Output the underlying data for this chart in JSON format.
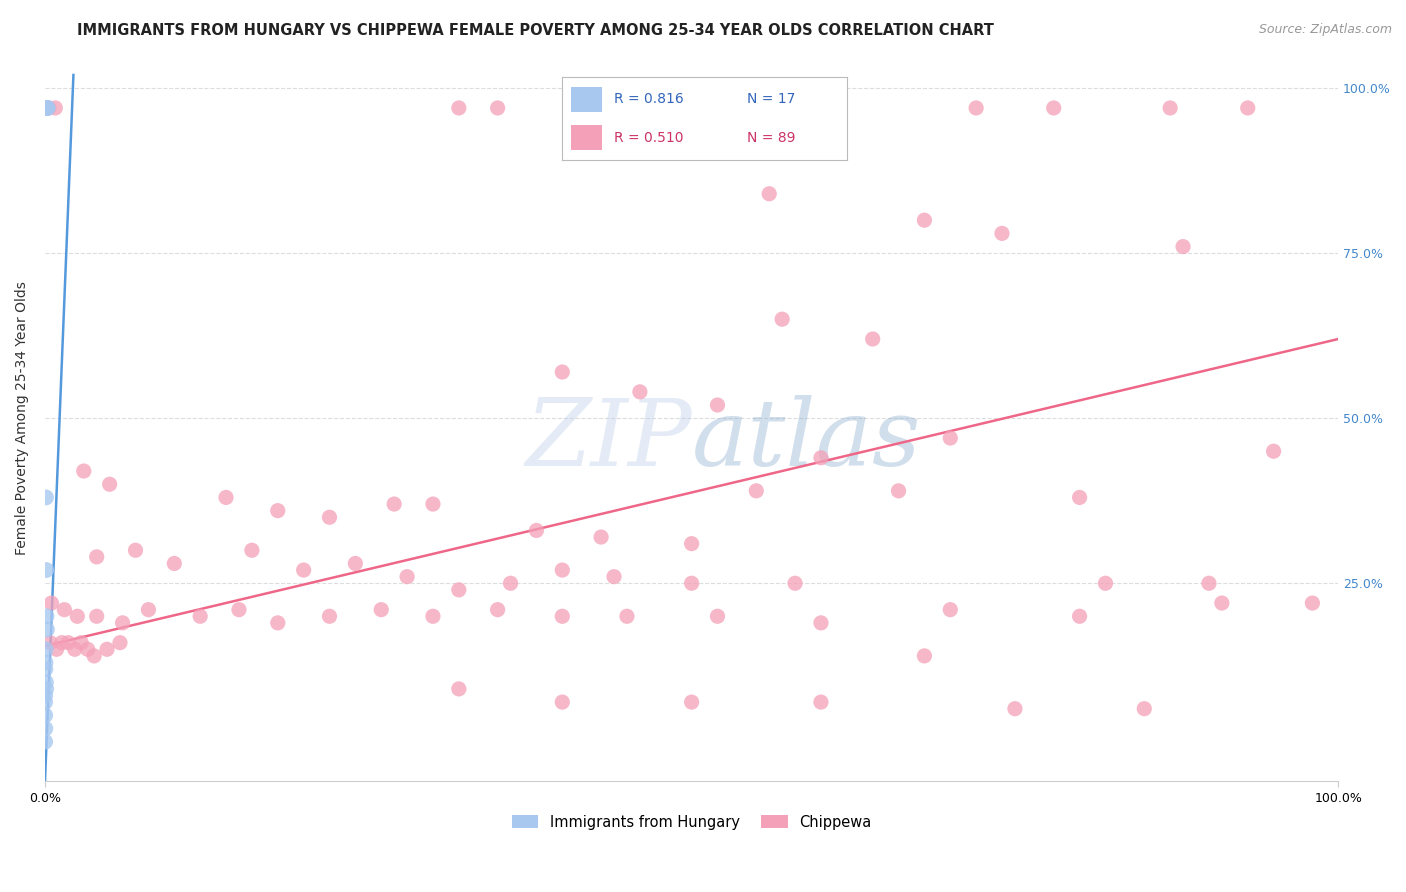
{
  "title": "IMMIGRANTS FROM HUNGARY VS CHIPPEWA FEMALE POVERTY AMONG 25-34 YEAR OLDS CORRELATION CHART",
  "source": "Source: ZipAtlas.com",
  "ylabel": "Female Poverty Among 25-34 Year Olds",
  "xlim": [
    0,
    1.0
  ],
  "ylim": [
    -0.05,
    1.05
  ],
  "grid_color": "#dddddd",
  "background_color": "#ffffff",
  "blue_color": "#a8c8f0",
  "pink_color": "#f4a0b8",
  "blue_line_color": "#5599dd",
  "pink_line_color": "#ee6688",
  "blue_scatter": [
    [
      0.0005,
      0.97
    ],
    [
      0.0018,
      0.97
    ],
    [
      0.0022,
      0.97
    ],
    [
      0.0008,
      0.38
    ],
    [
      0.001,
      0.27
    ],
    [
      0.0012,
      0.2
    ],
    [
      0.0015,
      0.18
    ],
    [
      0.0006,
      0.15
    ],
    [
      0.0004,
      0.13
    ],
    [
      0.0003,
      0.12
    ],
    [
      0.0007,
      0.1
    ],
    [
      0.0009,
      0.09
    ],
    [
      0.0002,
      0.08
    ],
    [
      0.0001,
      0.07
    ],
    [
      0.00015,
      0.05
    ],
    [
      0.00025,
      0.03
    ],
    [
      0.0001,
      0.01
    ]
  ],
  "pink_scatter": [
    [
      0.003,
      0.97
    ],
    [
      0.008,
      0.97
    ],
    [
      0.32,
      0.97
    ],
    [
      0.35,
      0.97
    ],
    [
      0.72,
      0.97
    ],
    [
      0.78,
      0.97
    ],
    [
      0.87,
      0.97
    ],
    [
      0.93,
      0.97
    ],
    [
      0.56,
      0.84
    ],
    [
      0.68,
      0.8
    ],
    [
      0.74,
      0.78
    ],
    [
      0.88,
      0.76
    ],
    [
      0.57,
      0.65
    ],
    [
      0.64,
      0.62
    ],
    [
      0.4,
      0.57
    ],
    [
      0.46,
      0.54
    ],
    [
      0.52,
      0.52
    ],
    [
      0.6,
      0.44
    ],
    [
      0.7,
      0.47
    ],
    [
      0.95,
      0.45
    ],
    [
      0.03,
      0.42
    ],
    [
      0.05,
      0.4
    ],
    [
      0.14,
      0.38
    ],
    [
      0.18,
      0.36
    ],
    [
      0.22,
      0.35
    ],
    [
      0.27,
      0.37
    ],
    [
      0.3,
      0.37
    ],
    [
      0.38,
      0.33
    ],
    [
      0.43,
      0.32
    ],
    [
      0.5,
      0.31
    ],
    [
      0.55,
      0.39
    ],
    [
      0.66,
      0.39
    ],
    [
      0.8,
      0.38
    ],
    [
      0.04,
      0.29
    ],
    [
      0.07,
      0.3
    ],
    [
      0.1,
      0.28
    ],
    [
      0.16,
      0.3
    ],
    [
      0.2,
      0.27
    ],
    [
      0.24,
      0.28
    ],
    [
      0.28,
      0.26
    ],
    [
      0.32,
      0.24
    ],
    [
      0.36,
      0.25
    ],
    [
      0.4,
      0.27
    ],
    [
      0.44,
      0.26
    ],
    [
      0.5,
      0.25
    ],
    [
      0.58,
      0.25
    ],
    [
      0.82,
      0.25
    ],
    [
      0.9,
      0.25
    ],
    [
      0.005,
      0.22
    ],
    [
      0.015,
      0.21
    ],
    [
      0.025,
      0.2
    ],
    [
      0.04,
      0.2
    ],
    [
      0.06,
      0.19
    ],
    [
      0.08,
      0.21
    ],
    [
      0.12,
      0.2
    ],
    [
      0.15,
      0.21
    ],
    [
      0.18,
      0.19
    ],
    [
      0.22,
      0.2
    ],
    [
      0.26,
      0.21
    ],
    [
      0.3,
      0.2
    ],
    [
      0.35,
      0.21
    ],
    [
      0.4,
      0.2
    ],
    [
      0.45,
      0.2
    ],
    [
      0.52,
      0.2
    ],
    [
      0.6,
      0.19
    ],
    [
      0.7,
      0.21
    ],
    [
      0.8,
      0.2
    ],
    [
      0.004,
      0.16
    ],
    [
      0.009,
      0.15
    ],
    [
      0.013,
      0.16
    ],
    [
      0.018,
      0.16
    ],
    [
      0.023,
      0.15
    ],
    [
      0.028,
      0.16
    ],
    [
      0.033,
      0.15
    ],
    [
      0.038,
      0.14
    ],
    [
      0.048,
      0.15
    ],
    [
      0.058,
      0.16
    ],
    [
      0.32,
      0.09
    ],
    [
      0.4,
      0.07
    ],
    [
      0.5,
      0.07
    ],
    [
      0.6,
      0.07
    ],
    [
      0.68,
      0.14
    ],
    [
      0.75,
      0.06
    ],
    [
      0.85,
      0.06
    ],
    [
      0.91,
      0.22
    ],
    [
      0.98,
      0.22
    ]
  ],
  "blue_line_x0": 0.0,
  "blue_line_x1": 0.022,
  "blue_line_y0": -0.05,
  "blue_line_y1": 1.02,
  "pink_line_x0": 0.0,
  "pink_line_x1": 1.0,
  "pink_line_y0": 0.155,
  "pink_line_y1": 0.62,
  "title_fontsize": 10.5,
  "source_fontsize": 9,
  "axis_label_fontsize": 10,
  "tick_fontsize": 9
}
